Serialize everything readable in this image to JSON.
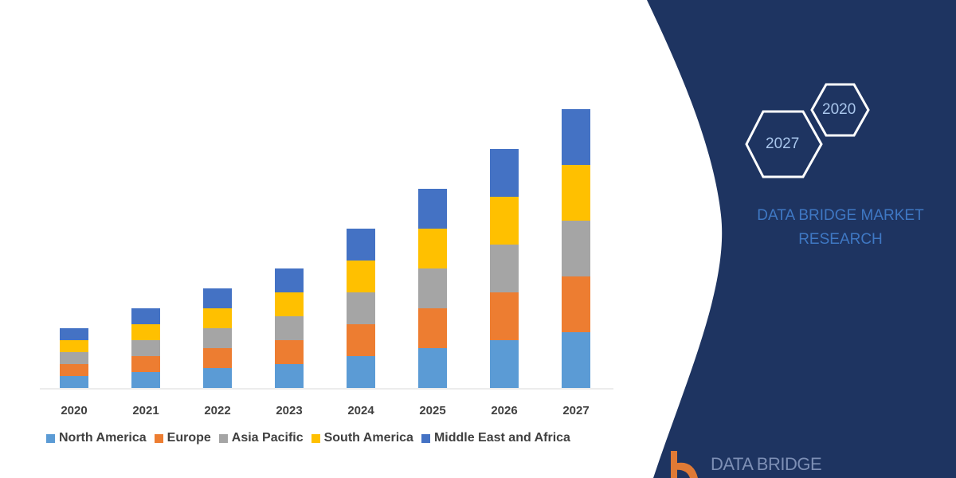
{
  "chart_data": {
    "type": "bar",
    "stacked": true,
    "categories": [
      "2020",
      "2021",
      "2022",
      "2023",
      "2024",
      "2025",
      "2026",
      "2027"
    ],
    "series": [
      {
        "name": "North America",
        "color": "#5b9bd5",
        "values": [
          3,
          4,
          5,
          6,
          8,
          10,
          12,
          14
        ]
      },
      {
        "name": "Europe",
        "color": "#ed7d31",
        "values": [
          3,
          4,
          5,
          6,
          8,
          10,
          12,
          14
        ]
      },
      {
        "name": "Asia Pacific",
        "color": "#a5a5a5",
        "values": [
          3,
          4,
          5,
          6,
          8,
          10,
          12,
          14
        ]
      },
      {
        "name": "South America",
        "color": "#ffc000",
        "values": [
          3,
          4,
          5,
          6,
          8,
          10,
          12,
          14
        ]
      },
      {
        "name": "Middle East and Africa",
        "color": "#4472c4",
        "values": [
          3,
          4,
          5,
          6,
          8,
          10,
          12,
          14
        ]
      }
    ],
    "title": "",
    "xlabel": "",
    "ylabel": "",
    "y_axis_shown": false,
    "grid": false,
    "legend_position": "bottom"
  },
  "panel": {
    "hex_top": "2020",
    "hex_bottom": "2027",
    "brand_line1": "DATA BRIDGE MARKET",
    "brand_line2": "RESEARCH",
    "logo_text": "DATA BRIDGE",
    "background_color": "#1e3461"
  }
}
